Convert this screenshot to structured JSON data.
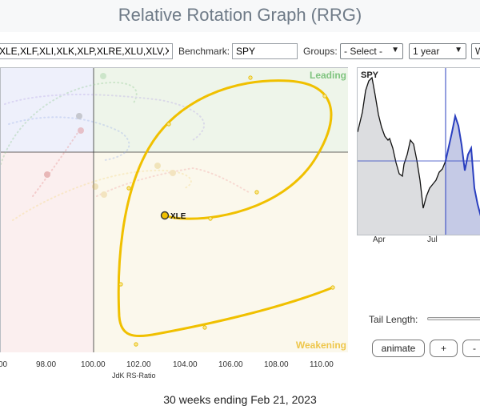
{
  "title": "Relative Rotation Graph (RRG)",
  "controls": {
    "symbols_value": "XLE,XLF,XLI,XLK,XLP,XLRE,XLU,XLV,XL",
    "benchmark_label": "Benchmark:",
    "benchmark_value": "SPY",
    "groups_label": "Groups:",
    "groups_selected": "- Select -",
    "period_selected": "1 year",
    "extra_selected": "W"
  },
  "chart": {
    "quadrants": {
      "leading": "Leading",
      "weakening": "Weakening"
    },
    "highlighted_symbol": "XLE",
    "x_ticks": [
      "00",
      "98.00",
      "100.00",
      "102.00",
      "104.00",
      "106.00",
      "108.00",
      "110.00"
    ],
    "x_axis_title": "JdK RS-Ratio",
    "colors": {
      "leading_bg": "#eef5ea",
      "weakening_bg": "#fbf8ec",
      "lagging_bg": "#fbefef",
      "improving_bg": "#eef0fb",
      "xle_tail": "#f0c000"
    }
  },
  "spy_panel": {
    "label": "SPY",
    "x_ticks": [
      "Apr",
      "Jul"
    ],
    "colors": {
      "price": "#111111",
      "highlight": "#2a3fbf",
      "fill": "#dcdde0",
      "fill_highlight": "#c5cae6"
    }
  },
  "tail": {
    "label": "Tail Length:"
  },
  "buttons": {
    "animate": "animate",
    "plus": "+",
    "minus": "-"
  },
  "footer": "30 weeks ending Feb 21, 2023"
}
